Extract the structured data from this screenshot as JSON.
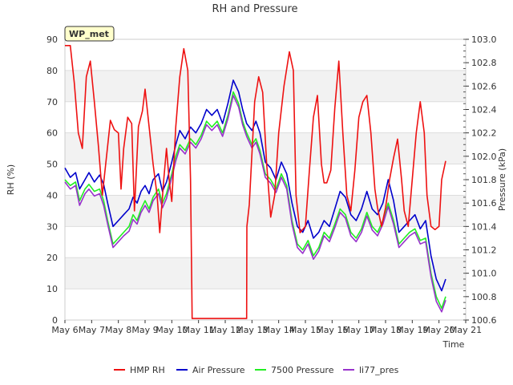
{
  "chart_data": {
    "type": "line",
    "title": "RH and Pressure",
    "badge": "WP_met",
    "xlabel": "Time",
    "ylabel_left": "RH (%)",
    "ylabel_right": "Pressure (kPa)",
    "x_ticks": [
      "May 6",
      "May 7",
      "May 8",
      "May 9",
      "May 10",
      "May 11",
      "May 12",
      "May 13",
      "May 14",
      "May 15",
      "May 16",
      "May 17",
      "May 18",
      "May 19",
      "May 20",
      "May 21"
    ],
    "xlim": [
      6,
      21
    ],
    "ylim_left": [
      0,
      90
    ],
    "ylim_right": [
      100.6,
      103.0
    ],
    "left_ticks": [
      0,
      10,
      20,
      30,
      40,
      50,
      60,
      70,
      80,
      90
    ],
    "right_ticks": [
      "100.6",
      "100.8",
      "101.0",
      "101.2",
      "101.4",
      "101.6",
      "101.8",
      "102.0",
      "102.2",
      "102.4",
      "102.6",
      "102.8",
      "103.0"
    ],
    "grid": "horizontal bands",
    "legend_position": "bottom",
    "colors": {
      "HMP RH": "#ee1111",
      "Air Pressure": "#0000cc",
      "7500 Pressure": "#22ee22",
      "li77_pres": "#9933cc",
      "badge_bg": "#ffffcc",
      "badge_text": "#990000"
    },
    "series": [
      {
        "name": "HMP RH",
        "axis": "left",
        "x": [
          6.0,
          6.2,
          6.35,
          6.5,
          6.65,
          6.8,
          6.95,
          7.1,
          7.25,
          7.4,
          7.55,
          7.7,
          7.85,
          8.0,
          8.1,
          8.2,
          8.35,
          8.5,
          8.6,
          8.75,
          8.9,
          9.0,
          9.15,
          9.3,
          9.45,
          9.55,
          9.7,
          9.8,
          9.9,
          10.0,
          10.15,
          10.3,
          10.45,
          10.6,
          10.7,
          10.75,
          10.76,
          12.8,
          12.81,
          12.9,
          13.1,
          13.25,
          13.4,
          13.55,
          13.7,
          13.85,
          14.0,
          14.2,
          14.4,
          14.55,
          14.65,
          14.8,
          15.0,
          15.15,
          15.3,
          15.45,
          15.6,
          15.7,
          15.8,
          15.95,
          16.1,
          16.25,
          16.4,
          16.55,
          16.7,
          16.85,
          17.0,
          17.15,
          17.3,
          17.45,
          17.6,
          17.7,
          17.85,
          18.0,
          18.15,
          18.3,
          18.45,
          18.6,
          18.7,
          18.85,
          19.0,
          19.15,
          19.3,
          19.45,
          19.55,
          19.7,
          19.85,
          20.0,
          20.1,
          20.25
        ],
        "y": [
          88,
          88,
          76,
          60,
          55,
          78,
          83,
          70,
          56,
          40,
          52,
          64,
          61,
          60,
          42,
          55,
          65,
          63,
          35,
          62,
          67,
          74,
          62,
          50,
          40,
          28,
          45,
          55,
          45,
          38,
          62,
          78,
          87,
          80,
          45,
          10,
          0.5,
          0.5,
          30,
          37,
          70,
          78,
          73,
          50,
          33,
          40,
          60,
          75,
          86,
          80,
          40,
          28,
          30,
          48,
          65,
          72,
          50,
          44,
          44,
          48,
          68,
          83,
          60,
          40,
          35,
          48,
          65,
          70,
          72,
          60,
          42,
          36,
          30,
          36,
          45,
          52,
          58,
          45,
          35,
          30,
          45,
          60,
          70,
          60,
          40,
          30,
          29,
          30,
          45,
          51
        ]
      },
      {
        "name": "Air Pressure",
        "axis": "right",
        "x": [
          6.0,
          6.2,
          6.4,
          6.55,
          6.75,
          6.9,
          7.1,
          7.3,
          7.45,
          7.6,
          7.8,
          8.0,
          8.2,
          8.4,
          8.55,
          8.7,
          8.85,
          9.0,
          9.15,
          9.3,
          9.5,
          9.65,
          9.8,
          10.0,
          10.15,
          10.3,
          10.5,
          10.7,
          10.9,
          11.1,
          11.3,
          11.5,
          11.7,
          11.9,
          12.1,
          12.3,
          12.5,
          12.65,
          12.8,
          13.0,
          13.15,
          13.3,
          13.5,
          13.7,
          13.9,
          14.1,
          14.3,
          14.5,
          14.7,
          14.9,
          15.1,
          15.3,
          15.5,
          15.7,
          15.9,
          16.1,
          16.3,
          16.5,
          16.7,
          16.9,
          17.1,
          17.3,
          17.5,
          17.7,
          17.9,
          18.1,
          18.3,
          18.5,
          18.7,
          18.9,
          19.1,
          19.3,
          19.5,
          19.7,
          19.9,
          20.1,
          20.25
        ],
        "y": [
          101.9,
          101.82,
          101.86,
          101.72,
          101.8,
          101.86,
          101.78,
          101.84,
          101.76,
          101.6,
          101.4,
          101.45,
          101.5,
          101.55,
          101.65,
          101.6,
          101.7,
          101.75,
          101.68,
          101.8,
          101.85,
          101.7,
          101.78,
          101.95,
          102.1,
          102.22,
          102.15,
          102.25,
          102.2,
          102.28,
          102.4,
          102.35,
          102.4,
          102.28,
          102.45,
          102.65,
          102.55,
          102.4,
          102.28,
          102.22,
          102.3,
          102.2,
          101.95,
          101.9,
          101.8,
          101.95,
          101.85,
          101.6,
          101.4,
          101.35,
          101.45,
          101.3,
          101.35,
          101.45,
          101.4,
          101.55,
          101.7,
          101.65,
          101.5,
          101.45,
          101.55,
          101.7,
          101.55,
          101.5,
          101.6,
          101.8,
          101.62,
          101.35,
          101.4,
          101.45,
          101.5,
          101.38,
          101.45,
          101.15,
          100.95,
          100.85,
          100.95
        ]
      },
      {
        "name": "7500 Pressure",
        "axis": "right",
        "x": [
          6.0,
          6.2,
          6.4,
          6.55,
          6.75,
          6.9,
          7.1,
          7.3,
          7.45,
          7.6,
          7.8,
          8.0,
          8.2,
          8.4,
          8.55,
          8.7,
          8.85,
          9.0,
          9.15,
          9.3,
          9.5,
          9.65,
          9.8,
          10.0,
          10.15,
          10.3,
          10.5,
          10.7,
          10.9,
          11.1,
          11.3,
          11.5,
          11.7,
          11.9,
          12.1,
          12.3,
          12.5,
          12.65,
          12.8,
          13.0,
          13.15,
          13.3,
          13.5,
          13.7,
          13.9,
          14.1,
          14.3,
          14.5,
          14.7,
          14.9,
          15.1,
          15.3,
          15.5,
          15.7,
          15.9,
          16.1,
          16.3,
          16.5,
          16.7,
          16.9,
          17.1,
          17.3,
          17.5,
          17.7,
          17.9,
          18.1,
          18.3,
          18.5,
          18.7,
          18.9,
          19.1,
          19.3,
          19.5,
          19.7,
          19.9,
          20.1,
          20.25
        ],
        "y": [
          101.8,
          101.75,
          101.78,
          101.62,
          101.72,
          101.76,
          101.7,
          101.72,
          101.62,
          101.45,
          101.25,
          101.3,
          101.35,
          101.4,
          101.5,
          101.45,
          101.55,
          101.62,
          101.55,
          101.65,
          101.72,
          101.6,
          101.68,
          101.85,
          102.0,
          102.1,
          102.05,
          102.15,
          102.1,
          102.18,
          102.3,
          102.25,
          102.3,
          102.2,
          102.35,
          102.55,
          102.45,
          102.3,
          102.2,
          102.1,
          102.15,
          102.05,
          101.85,
          101.8,
          101.72,
          101.85,
          101.75,
          101.45,
          101.25,
          101.2,
          101.28,
          101.15,
          101.22,
          101.35,
          101.3,
          101.42,
          101.55,
          101.5,
          101.35,
          101.3,
          101.38,
          101.52,
          101.4,
          101.35,
          101.45,
          101.6,
          101.45,
          101.25,
          101.3,
          101.35,
          101.38,
          101.28,
          101.3,
          101.0,
          100.8,
          100.7,
          100.8
        ]
      },
      {
        "name": "li77_pres",
        "axis": "right",
        "x": [
          6.0,
          6.2,
          6.4,
          6.55,
          6.75,
          6.9,
          7.1,
          7.3,
          7.45,
          7.6,
          7.8,
          8.0,
          8.2,
          8.4,
          8.55,
          8.7,
          8.85,
          9.0,
          9.15,
          9.3,
          9.5,
          9.65,
          9.8,
          10.0,
          10.15,
          10.3,
          10.5,
          10.7,
          10.9,
          11.1,
          11.3,
          11.5,
          11.7,
          11.9,
          12.1,
          12.3,
          12.5,
          12.65,
          12.8,
          13.0,
          13.15,
          13.3,
          13.5,
          13.7,
          13.9,
          14.1,
          14.3,
          14.5,
          14.7,
          14.9,
          15.1,
          15.3,
          15.5,
          15.7,
          15.9,
          16.1,
          16.3,
          16.5,
          16.7,
          16.9,
          17.1,
          17.3,
          17.5,
          17.7,
          17.9,
          18.1,
          18.3,
          18.5,
          18.7,
          18.9,
          19.1,
          19.3,
          19.5,
          19.7,
          19.9,
          20.1,
          20.25
        ],
        "y": [
          101.78,
          101.72,
          101.75,
          101.58,
          101.68,
          101.72,
          101.66,
          101.68,
          101.58,
          101.42,
          101.22,
          101.27,
          101.32,
          101.36,
          101.46,
          101.42,
          101.52,
          101.58,
          101.52,
          101.62,
          101.68,
          101.56,
          101.64,
          101.82,
          101.96,
          102.07,
          102.02,
          102.12,
          102.07,
          102.15,
          102.27,
          102.22,
          102.27,
          102.17,
          102.32,
          102.52,
          102.42,
          102.27,
          102.17,
          102.07,
          102.12,
          102.02,
          101.82,
          101.77,
          101.69,
          101.82,
          101.72,
          101.42,
          101.22,
          101.17,
          101.25,
          101.12,
          101.19,
          101.32,
          101.27,
          101.39,
          101.52,
          101.47,
          101.32,
          101.27,
          101.35,
          101.49,
          101.37,
          101.32,
          101.42,
          101.57,
          101.42,
          101.22,
          101.27,
          101.32,
          101.35,
          101.25,
          101.27,
          100.97,
          100.76,
          100.67,
          100.77
        ]
      }
    ]
  }
}
